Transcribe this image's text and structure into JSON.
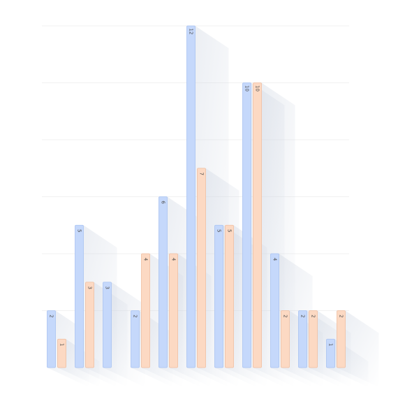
{
  "chart_data": {
    "type": "bar",
    "categories": [
      "",
      "",
      "",
      "",
      "",
      "",
      "",
      "",
      "",
      "",
      "",
      ""
    ],
    "series": [
      {
        "values": [
          2,
          5,
          3,
          2,
          6,
          12,
          5,
          10,
          4,
          2,
          1,
          null
        ]
      },
      {
        "values": [
          1,
          3,
          null,
          4,
          4,
          7,
          5,
          10,
          2,
          2,
          2,
          null
        ]
      }
    ],
    "ylim": [
      0,
      12
    ],
    "grid": true,
    "legend": "none",
    "title": "",
    "xlabel": "",
    "ylabel": ""
  },
  "colors": {
    "series_fills": [
      "#c5d8fb",
      "#fcd9c3"
    ],
    "series_strokes": [
      "#a9c3f2",
      "#f0bfa1"
    ],
    "shadow": "#d9dfe8",
    "grid": "#f1f1f1"
  }
}
